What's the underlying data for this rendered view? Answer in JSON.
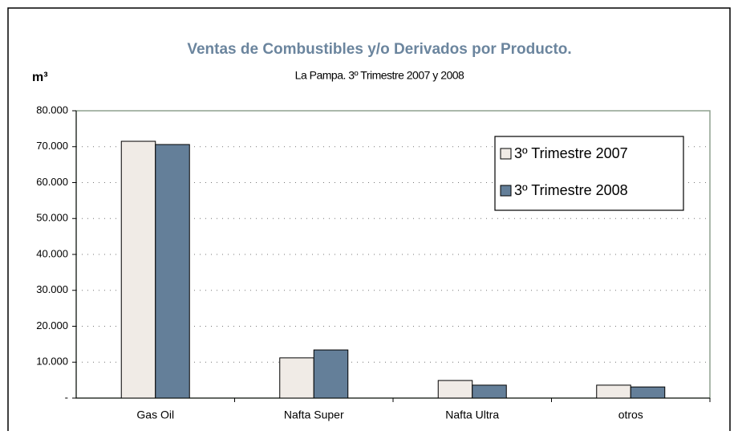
{
  "chart_data": {
    "type": "bar",
    "title": "Ventas de Combustibles y/o Derivados por Producto.",
    "subtitle": "La Pampa. 3º Trimestre 2007 y 2008",
    "y_label": "m³",
    "categories": [
      "Gas Oil",
      "Nafta Super",
      "Nafta Ultra",
      "otros"
    ],
    "series": [
      {
        "name": "3º Trimestre 2007",
        "color": "#f0ebe6",
        "values": [
          71500,
          11200,
          4900,
          3600
        ]
      },
      {
        "name": "3º Trimestre 2008",
        "color": "#647f99",
        "values": [
          70600,
          13400,
          3600,
          3100
        ]
      }
    ],
    "ylim": [
      0,
      80000
    ],
    "yticks": [
      {
        "value": 0,
        "label": "-"
      },
      {
        "value": 10000,
        "label": "10.000"
      },
      {
        "value": 20000,
        "label": "20.000"
      },
      {
        "value": 30000,
        "label": "30.000"
      },
      {
        "value": 40000,
        "label": "40.000"
      },
      {
        "value": 50000,
        "label": "50.000"
      },
      {
        "value": 60000,
        "label": "60.000"
      },
      {
        "value": 70000,
        "label": "70.000"
      },
      {
        "value": 80000,
        "label": "80.000"
      }
    ],
    "grid": true,
    "legend": "upper right"
  }
}
